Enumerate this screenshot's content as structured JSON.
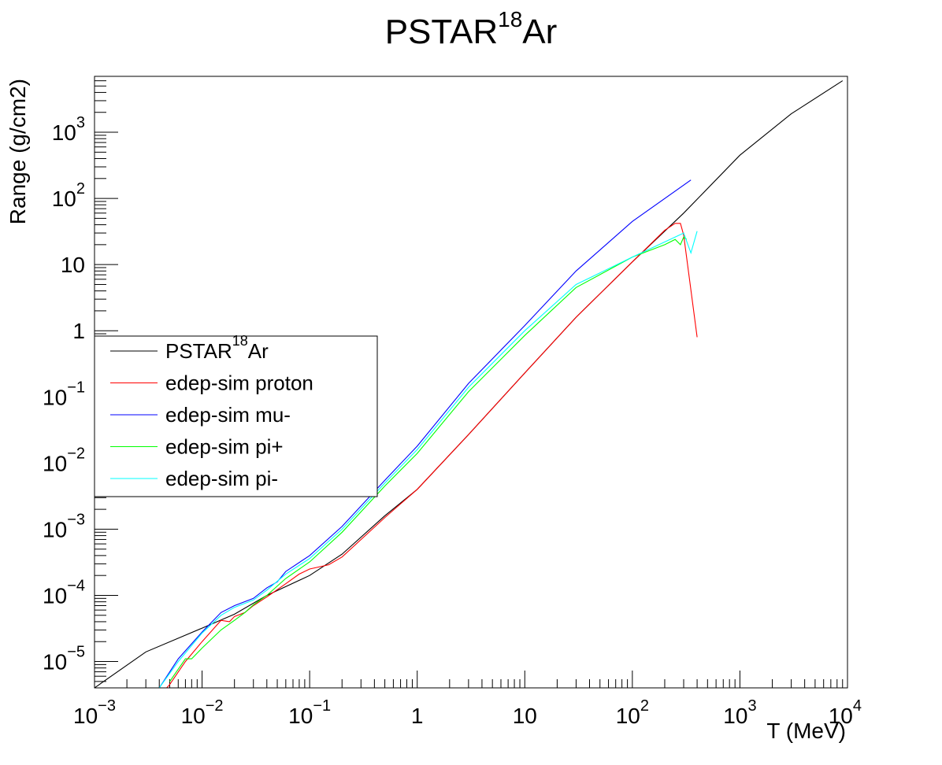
{
  "chart_data": {
    "type": "line",
    "title": "PSTAR ",
    "title_superscript": "18",
    "title_suffix": "Ar",
    "xlabel": "T (MeV)",
    "ylabel": "Range (g/cm2)",
    "x_scale": "log",
    "y_scale": "log",
    "xlim": [
      0.001,
      10000
    ],
    "ylim": [
      4e-06,
      7000
    ],
    "grid": false,
    "legend_position": "center-left",
    "x_ticks": [
      {
        "value": 0.001,
        "base": "10",
        "exp": "−3"
      },
      {
        "value": 0.01,
        "base": "10",
        "exp": "−2"
      },
      {
        "value": 0.1,
        "base": "10",
        "exp": "−1"
      },
      {
        "value": 1,
        "base": "1",
        "exp": ""
      },
      {
        "value": 10,
        "base": "10",
        "exp": ""
      },
      {
        "value": 100,
        "base": "10",
        "exp": "2"
      },
      {
        "value": 1000,
        "base": "10",
        "exp": "3"
      },
      {
        "value": 10000,
        "base": "10",
        "exp": "4"
      }
    ],
    "y_ticks": [
      {
        "value": 1e-05,
        "base": "10",
        "exp": "−5"
      },
      {
        "value": 0.0001,
        "base": "10",
        "exp": "−4"
      },
      {
        "value": 0.001,
        "base": "10",
        "exp": "−3"
      },
      {
        "value": 0.01,
        "base": "10",
        "exp": "−2"
      },
      {
        "value": 0.1,
        "base": "10",
        "exp": "−1"
      },
      {
        "value": 1,
        "base": "1",
        "exp": ""
      },
      {
        "value": 10,
        "base": "10",
        "exp": ""
      },
      {
        "value": 100,
        "base": "10",
        "exp": "2"
      },
      {
        "value": 1000,
        "base": "10",
        "exp": "3"
      }
    ],
    "series": [
      {
        "name": "PSTAR ",
        "name_superscript": "18",
        "name_suffix": "Ar",
        "color": "#000000",
        "x": [
          0.001,
          0.003,
          0.01,
          0.02,
          0.04,
          0.1,
          0.2,
          0.5,
          1,
          3,
          10,
          30,
          100,
          300,
          1000,
          3000,
          9000
        ],
        "y": [
          4e-06,
          1.4e-05,
          3.2e-05,
          5.2e-05,
          0.0001,
          0.0002,
          0.00042,
          0.0016,
          0.004,
          0.027,
          0.23,
          1.6,
          11,
          60,
          450,
          1900,
          6000
        ]
      },
      {
        "name": "edep-sim proton",
        "color": "#ff0000",
        "x": [
          0.004,
          0.005,
          0.007,
          0.01,
          0.015,
          0.018,
          0.02,
          0.025,
          0.03,
          0.04,
          0.06,
          0.08,
          0.1,
          0.15,
          0.2,
          0.5,
          1,
          3,
          10,
          30,
          100,
          200,
          250,
          280,
          300,
          400
        ],
        "y": [
          3e-06,
          4.5e-06,
          1e-05,
          2e-05,
          4.2e-05,
          4e-05,
          4.8e-05,
          5.5e-05,
          7e-05,
          9.5e-05,
          0.00015,
          0.00021,
          0.00025,
          0.00029,
          0.00038,
          0.0015,
          0.004,
          0.027,
          0.23,
          1.6,
          11,
          33,
          42,
          42,
          28,
          0.8
        ]
      },
      {
        "name": "edep-sim mu-",
        "color": "#0000ff",
        "x": [
          0.004,
          0.006,
          0.01,
          0.015,
          0.02,
          0.03,
          0.04,
          0.05,
          0.06,
          0.1,
          0.2,
          0.5,
          1,
          3,
          10,
          30,
          100,
          350
        ],
        "y": [
          4e-06,
          1.1e-05,
          2.8e-05,
          5.5e-05,
          7e-05,
          9e-05,
          0.00013,
          0.00016,
          0.00023,
          0.0004,
          0.0011,
          0.0055,
          0.018,
          0.16,
          1.2,
          8,
          45,
          190
        ]
      },
      {
        "name": "edep-sim pi+",
        "color": "#00ff00",
        "x": [
          0.005,
          0.007,
          0.008,
          0.01,
          0.015,
          0.02,
          0.025,
          0.03,
          0.04,
          0.06,
          0.1,
          0.2,
          0.5,
          1,
          3,
          10,
          30,
          100,
          200,
          250,
          280,
          300,
          320
        ],
        "y": [
          5e-06,
          1.1e-05,
          1.1e-05,
          1.6e-05,
          3e-05,
          4.2e-05,
          5.5e-05,
          7.2e-05,
          0.0001,
          0.00018,
          0.00032,
          0.0009,
          0.0045,
          0.014,
          0.12,
          0.85,
          4.5,
          13,
          20,
          24,
          20,
          26,
          24
        ]
      },
      {
        "name": "edep-sim pi-",
        "color": "#00ffff",
        "x": [
          0.004,
          0.006,
          0.01,
          0.015,
          0.02,
          0.03,
          0.04,
          0.06,
          0.1,
          0.2,
          0.5,
          1,
          3,
          10,
          30,
          100,
          200,
          300,
          350,
          400
        ],
        "y": [
          4e-06,
          1e-05,
          2.7e-05,
          5e-05,
          6.6e-05,
          8.5e-05,
          0.00012,
          0.00021,
          0.00036,
          0.001,
          0.005,
          0.016,
          0.14,
          1.0,
          5,
          13,
          22,
          30,
          15,
          32
        ]
      }
    ]
  }
}
